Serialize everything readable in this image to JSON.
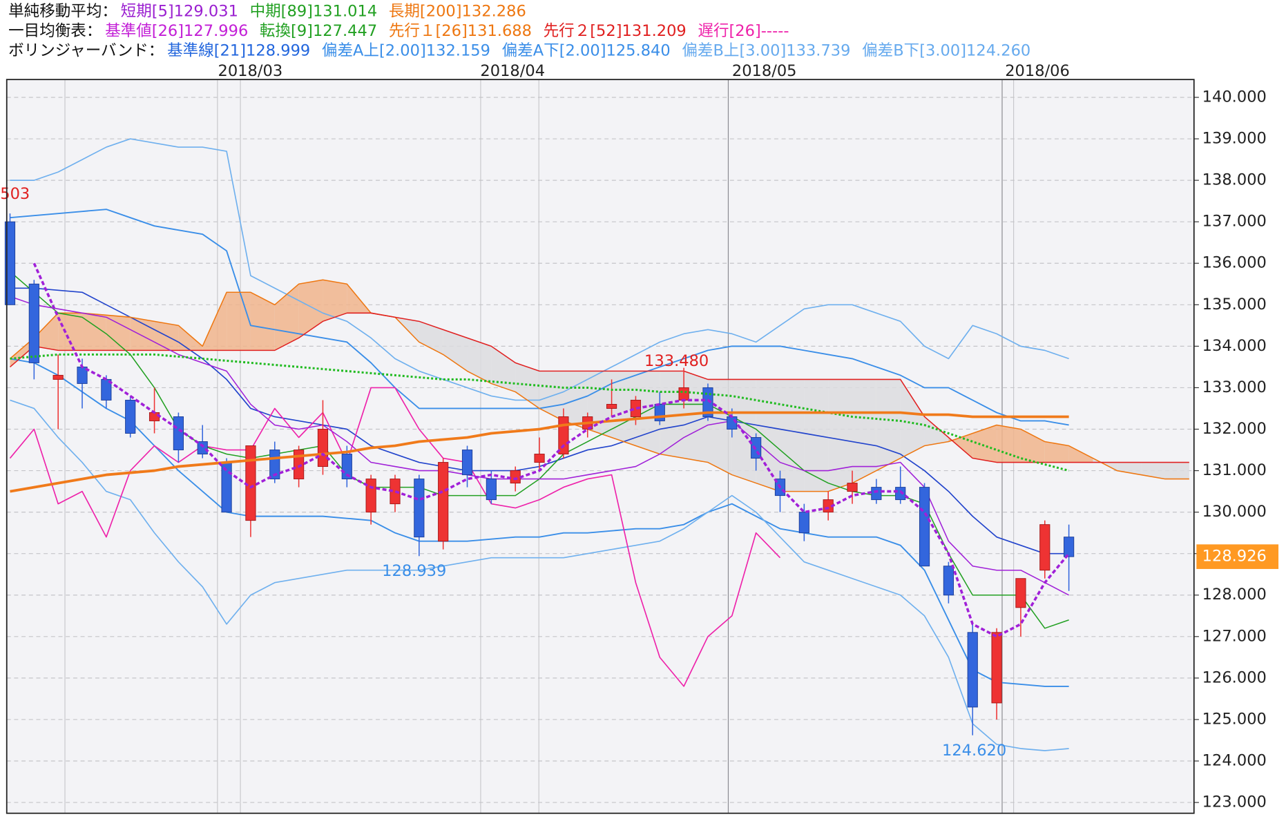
{
  "chart_data": {
    "type": "candlestick",
    "header": [
      {
        "label": "単純移動平均：",
        "items": [
          {
            "text": "短期[5]129.031",
            "color": "#9a1fd0"
          },
          {
            "text": "中期[89]131.014",
            "color": "#22a022"
          },
          {
            "text": "長期[200]132.286",
            "color": "#ee7711"
          }
        ]
      },
      {
        "label": "一目均衡表：",
        "items": [
          {
            "text": "基準値[26]127.996",
            "color": "#c21ed6"
          },
          {
            "text": "転換[9]127.447",
            "color": "#22a022"
          },
          {
            "text": "先行１[26]131.688",
            "color": "#ee7711"
          },
          {
            "text": "先行２[52]131.209",
            "color": "#e02020"
          },
          {
            "text": "遅行[26]-----",
            "color": "#ee22aa"
          }
        ]
      },
      {
        "label": "ボリンジャーバンド：",
        "items": [
          {
            "text": "基準線[21]128.999",
            "color": "#2266dd"
          },
          {
            "text": "偏差A上[2.00]132.159",
            "color": "#3a8ee8"
          },
          {
            "text": "偏差A下[2.00]125.840",
            "color": "#3a8ee8"
          },
          {
            "text": "偏差B上[3.00]133.739",
            "color": "#66aaee"
          },
          {
            "text": "偏差B下[3.00]124.260",
            "color": "#66aaee"
          }
        ]
      }
    ],
    "dates": [
      "2018/03",
      "2018/04",
      "2018/05",
      "2018/06"
    ],
    "ylim": [
      122.74,
      140.43
    ],
    "yticks": [
      {
        "value": 140,
        "label": "140.000"
      },
      {
        "value": 139,
        "label": "139.000"
      },
      {
        "value": 138,
        "label": "138.000"
      },
      {
        "value": 137,
        "label": "137.000"
      },
      {
        "value": 136,
        "label": "136.000"
      },
      {
        "value": 135,
        "label": "135.000"
      },
      {
        "value": 134,
        "label": "134.000"
      },
      {
        "value": 133,
        "label": "133.000"
      },
      {
        "value": 132,
        "label": "132.000"
      },
      {
        "value": 131,
        "label": "131.000"
      },
      {
        "value": 130,
        "label": "130.000"
      },
      {
        "value": 129,
        "label": "129.000"
      },
      {
        "value": 128,
        "label": "128.000"
      },
      {
        "value": 127,
        "label": "127.000"
      },
      {
        "value": 126,
        "label": "126.000"
      },
      {
        "value": 125,
        "label": "125.000"
      },
      {
        "value": 124,
        "label": "124.000"
      },
      {
        "value": 123,
        "label": "123.000"
      }
    ],
    "grid": true,
    "candles": {
      "up_color": "#ee3333",
      "down_color": "#3366dd",
      "open": [
        137.0,
        135.5,
        133.2,
        133.5,
        133.2,
        132.7,
        132.2,
        132.3,
        131.7,
        131.2,
        129.8,
        131.5,
        130.8,
        131.1,
        131.4,
        130.0,
        130.2,
        130.8,
        129.3,
        131.5,
        130.8,
        130.7,
        131.2,
        131.4,
        132.0,
        132.5,
        132.3,
        132.6,
        132.7,
        133.0,
        132.3,
        131.8,
        130.8,
        130.0,
        130.0,
        130.5,
        130.6,
        130.6,
        130.6,
        128.7,
        127.1,
        125.4,
        127.7,
        128.6,
        129.4
      ],
      "high": [
        137.2,
        135.6,
        133.8,
        133.7,
        133.3,
        132.8,
        133.0,
        132.4,
        132.1,
        131.3,
        131.6,
        131.7,
        131.6,
        132.7,
        131.6,
        130.9,
        130.9,
        130.9,
        131.3,
        131.6,
        131.0,
        131.1,
        131.8,
        132.5,
        132.4,
        133.2,
        132.8,
        132.9,
        133.48,
        133.1,
        132.5,
        131.9,
        131.0,
        130.2,
        130.5,
        131.0,
        130.8,
        131.1,
        130.7,
        128.8,
        127.3,
        127.2,
        128.4,
        129.8,
        129.7
      ],
      "low": [
        135.0,
        133.2,
        132.0,
        132.5,
        132.5,
        131.8,
        131.9,
        131.2,
        131.3,
        130.0,
        129.4,
        130.7,
        130.6,
        130.9,
        130.6,
        129.7,
        130.0,
        128.94,
        129.1,
        130.6,
        130.2,
        130.5,
        131.0,
        131.3,
        131.8,
        132.3,
        132.1,
        132.1,
        132.5,
        132.2,
        131.8,
        131.0,
        130.0,
        129.3,
        129.8,
        130.2,
        130.2,
        130.2,
        128.7,
        127.8,
        124.62,
        125.0,
        127.0,
        128.4,
        128.1
      ],
      "close": [
        135.0,
        133.6,
        133.3,
        133.1,
        132.7,
        131.9,
        132.4,
        131.5,
        131.4,
        130.0,
        131.6,
        130.8,
        131.5,
        132.0,
        130.8,
        130.8,
        130.8,
        129.4,
        131.2,
        130.9,
        130.3,
        131.0,
        131.4,
        132.3,
        132.3,
        132.6,
        132.7,
        132.2,
        133.0,
        132.3,
        132.0,
        131.3,
        130.4,
        129.5,
        130.3,
        130.7,
        130.3,
        130.3,
        128.7,
        128.0,
        125.3,
        127.1,
        128.4,
        129.7,
        128.926
      ]
    },
    "clouds": {
      "color_up": "#f0b48c",
      "color_down": "#dcdcdf"
    },
    "lines": [
      {
        "color": "#3a8ee8",
        "width": 1.6,
        "style": "solid",
        "values": [
          133.7,
          133.6,
          133.3,
          132.9,
          132.5,
          132.2,
          131.6,
          131.0,
          130.5,
          130.0,
          129.9,
          129.9,
          129.9,
          129.9,
          129.85,
          129.8,
          129.5,
          129.3,
          129.3,
          129.3,
          129.35,
          129.4,
          129.4,
          129.5,
          129.5,
          129.55,
          129.6,
          129.6,
          129.7,
          130.0,
          130.2,
          129.9,
          129.6,
          129.5,
          129.4,
          129.4,
          129.4,
          129.2,
          128.6,
          127.4,
          126.2,
          125.9,
          125.85,
          125.8,
          125.8
        ]
      },
      {
        "color": "#3a8ee8",
        "width": 1.6,
        "style": "solid",
        "values": [
          137.1,
          137.15,
          137.2,
          137.25,
          137.3,
          137.1,
          136.9,
          136.8,
          136.7,
          136.3,
          134.5,
          134.4,
          134.3,
          134.2,
          134.1,
          133.6,
          133.0,
          132.5,
          132.5,
          132.5,
          132.5,
          132.5,
          132.5,
          132.6,
          132.8,
          133.1,
          133.3,
          133.5,
          133.7,
          133.9,
          134.0,
          134.0,
          134.0,
          133.9,
          133.8,
          133.7,
          133.5,
          133.3,
          133.0,
          133.0,
          132.7,
          132.4,
          132.2,
          132.2,
          132.1
        ]
      },
      {
        "color": "#6fb0ee",
        "width": 1.4,
        "style": "solid",
        "values": [
          138.0,
          138.0,
          138.2,
          138.5,
          138.8,
          139.0,
          138.9,
          138.8,
          138.8,
          138.7,
          135.7,
          135.4,
          135.1,
          134.8,
          134.6,
          134.2,
          133.7,
          133.4,
          133.2,
          133.0,
          132.8,
          132.7,
          132.7,
          132.9,
          133.2,
          133.5,
          133.8,
          134.1,
          134.3,
          134.4,
          134.3,
          134.1,
          134.5,
          134.9,
          135.0,
          135.0,
          134.8,
          134.6,
          134.0,
          133.7,
          134.5,
          134.3,
          134.0,
          133.9,
          133.7
        ]
      },
      {
        "color": "#6fb0ee",
        "width": 1.4,
        "style": "solid",
        "values": [
          132.7,
          132.5,
          131.8,
          131.2,
          130.5,
          130.3,
          129.5,
          128.8,
          128.2,
          127.3,
          128.0,
          128.3,
          128.4,
          128.5,
          128.6,
          128.6,
          128.6,
          128.6,
          128.7,
          128.8,
          128.9,
          128.9,
          128.9,
          128.9,
          129.0,
          129.1,
          129.2,
          129.3,
          129.6,
          130.0,
          130.4,
          130.0,
          129.4,
          128.8,
          128.6,
          128.4,
          128.2,
          128.0,
          127.5,
          126.5,
          124.9,
          124.4,
          124.3,
          124.25,
          124.3
        ]
      },
      {
        "color": "#2244cc",
        "width": 1.4,
        "style": "solid",
        "values": [
          135.4,
          135.4,
          135.35,
          135.3,
          135.0,
          134.7,
          134.4,
          134.1,
          133.7,
          133.2,
          132.5,
          132.3,
          132.2,
          132.1,
          132.0,
          131.6,
          131.4,
          131.2,
          131.1,
          131.0,
          131.0,
          131.0,
          131.1,
          131.3,
          131.5,
          131.6,
          131.8,
          132.0,
          132.1,
          132.3,
          132.2,
          132.1,
          132.0,
          131.9,
          131.8,
          131.7,
          131.6,
          131.4,
          131.0,
          130.5,
          129.9,
          129.4,
          129.2,
          129.0,
          129.0
        ]
      },
      {
        "color": "#ee7711",
        "width": 1.3,
        "style": "solid",
        "values": [
          133.7,
          134.2,
          134.8,
          134.8,
          134.75,
          134.7,
          134.6,
          134.5,
          134.0,
          135.3,
          135.3,
          135.0,
          135.5,
          135.6,
          135.5,
          134.8,
          134.7,
          134.1,
          133.8,
          133.4,
          133.1,
          132.9,
          132.5,
          132.2,
          132.0,
          131.8,
          131.6,
          131.4,
          131.3,
          131.2,
          130.9,
          130.7,
          130.5,
          130.5,
          130.5,
          130.7,
          131.0,
          131.3,
          131.6,
          131.7,
          131.9,
          132.1,
          132.0,
          131.7,
          131.6,
          131.3,
          131.0,
          130.9,
          130.8,
          130.8
        ]
      },
      {
        "color": "#e02020",
        "width": 1.3,
        "style": "solid",
        "values": [
          133.5,
          134.0,
          133.9,
          133.9,
          133.9,
          133.9,
          133.9,
          133.9,
          133.9,
          133.9,
          133.9,
          133.9,
          134.2,
          134.6,
          134.8,
          134.8,
          134.7,
          134.6,
          134.4,
          134.2,
          134.0,
          133.6,
          133.4,
          133.4,
          133.4,
          133.4,
          133.4,
          133.4,
          133.4,
          133.2,
          133.2,
          133.2,
          133.2,
          133.2,
          133.2,
          133.2,
          133.2,
          133.2,
          132.3,
          131.8,
          131.3,
          131.2,
          131.2,
          131.2,
          131.2,
          131.2,
          131.2,
          131.2,
          131.2,
          131.2
        ]
      },
      {
        "color": "#ee22aa",
        "width": 1.4,
        "style": "solid",
        "values": [
          131.3,
          132.0,
          130.2,
          130.5,
          129.4,
          131.0,
          131.6,
          131.2,
          131.6,
          131.5,
          131.5,
          132.5,
          131.8,
          132.4,
          131.2,
          133.0,
          133.0,
          132.0,
          131.3,
          131.2,
          130.2,
          130.1,
          130.3,
          130.6,
          130.8,
          130.9,
          128.3,
          126.5,
          125.8,
          127.0,
          127.5,
          129.5,
          128.9,
          null,
          null,
          null,
          null,
          null,
          null,
          null,
          null,
          null,
          null,
          null,
          null
        ]
      },
      {
        "color": "#22a022",
        "width": 1.3,
        "style": "solid",
        "values": [
          135.8,
          135.3,
          134.8,
          134.7,
          134.3,
          133.8,
          133.0,
          132.0,
          131.6,
          131.4,
          131.3,
          131.4,
          131.5,
          131.6,
          130.9,
          130.6,
          130.6,
          130.6,
          130.4,
          130.4,
          130.4,
          130.4,
          130.8,
          131.4,
          131.7,
          132.0,
          132.3,
          132.6,
          132.6,
          132.6,
          132.3,
          132.0,
          131.5,
          131.0,
          130.7,
          130.5,
          130.4,
          130.4,
          130.2,
          129.0,
          128.0,
          128.0,
          128.0,
          127.2,
          127.4
        ]
      },
      {
        "color": "#a020d8",
        "width": 1.3,
        "style": "solid",
        "values": [
          135.2,
          135.0,
          134.9,
          134.8,
          134.7,
          134.4,
          134.1,
          133.8,
          133.6,
          133.4,
          132.6,
          132.1,
          132.0,
          132.1,
          131.7,
          131.2,
          131.1,
          131.0,
          131.0,
          130.9,
          130.8,
          130.8,
          130.8,
          130.8,
          130.9,
          131.0,
          131.1,
          131.4,
          131.8,
          132.1,
          132.2,
          131.7,
          131.2,
          131.0,
          131.0,
          131.1,
          131.1,
          131.2,
          130.6,
          129.3,
          128.7,
          128.6,
          128.6,
          128.3,
          128.0
        ]
      },
      {
        "color": "#22bb22",
        "width": 2.6,
        "style": "dotted",
        "values": [
          133.7,
          133.75,
          133.8,
          133.8,
          133.8,
          133.8,
          133.8,
          133.75,
          133.7,
          133.65,
          133.6,
          133.55,
          133.5,
          133.45,
          133.4,
          133.35,
          133.3,
          133.25,
          133.2,
          133.2,
          133.15,
          133.1,
          133.05,
          133.0,
          133.0,
          132.95,
          132.95,
          132.9,
          132.9,
          132.85,
          132.8,
          132.7,
          132.6,
          132.5,
          132.4,
          132.3,
          132.25,
          132.2,
          132.1,
          131.9,
          131.7,
          131.5,
          131.3,
          131.15,
          131.0
        ]
      },
      {
        "color": "#f07a1a",
        "width": 3.2,
        "style": "solid",
        "values": [
          130.5,
          130.6,
          130.7,
          130.8,
          130.9,
          130.95,
          131.0,
          131.1,
          131.15,
          131.2,
          131.25,
          131.3,
          131.35,
          131.4,
          131.45,
          131.55,
          131.6,
          131.7,
          131.75,
          131.8,
          131.9,
          131.95,
          132.0,
          132.1,
          132.15,
          132.2,
          132.25,
          132.3,
          132.35,
          132.4,
          132.4,
          132.4,
          132.4,
          132.4,
          132.4,
          132.4,
          132.4,
          132.4,
          132.35,
          132.35,
          132.3,
          132.3,
          132.3,
          132.3,
          132.3
        ]
      },
      {
        "color": "#a020d8",
        "width": 3,
        "style": "dashed",
        "values": [
          null,
          136.0,
          134.7,
          133.5,
          133.2,
          132.8,
          132.4,
          132.0,
          131.6,
          131.0,
          130.6,
          130.9,
          131.1,
          131.4,
          130.9,
          130.6,
          130.5,
          130.3,
          130.5,
          130.8,
          130.9,
          130.8,
          131.0,
          131.6,
          132.0,
          132.3,
          132.5,
          132.6,
          132.7,
          132.7,
          132.3,
          131.5,
          130.6,
          130.0,
          130.1,
          130.4,
          130.5,
          130.5,
          130.0,
          129.0,
          127.3,
          127.0,
          127.3,
          128.3,
          129.0
        ]
      }
    ],
    "cloud_lines": [
      5,
      6
    ],
    "annotations": [
      {
        "text": "503",
        "color": "#e02020"
      },
      {
        "text": "133.480",
        "color": "#e02020"
      },
      {
        "text": "128.939",
        "color": "#3a8ee8"
      },
      {
        "text": "124.620",
        "color": "#3a8ee8"
      }
    ],
    "last_price": {
      "value": 128.926,
      "label": "128.926",
      "color": "#ff9922"
    }
  }
}
